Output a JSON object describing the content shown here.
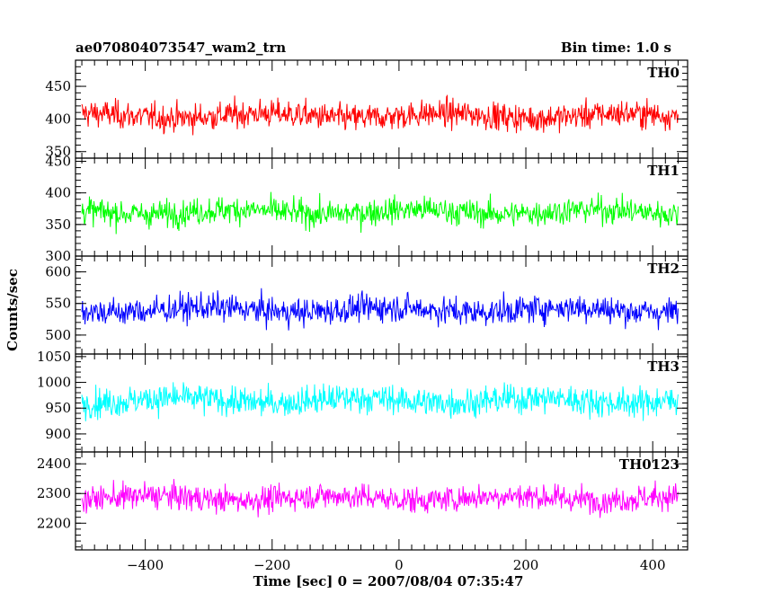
{
  "header": {
    "title": "ae070804073547_wam2_trn",
    "bin_time": "Bin time: 1.0 s"
  },
  "chart_data": {
    "type": "line",
    "xlabel": "Time [sec] 0 = 2007/08/04 07:35:47",
    "ylabel": "Counts/sec",
    "xlim": [
      -510,
      455
    ],
    "x_range": [
      -500,
      440
    ],
    "bin_time": 1.0,
    "xticks": [
      -400,
      -200,
      0,
      200,
      400
    ],
    "panels": [
      {
        "name": "TH0",
        "color": "#ff0000",
        "ylim": [
          340,
          490
        ],
        "yticks": [
          350,
          400,
          450
        ],
        "mean": 405,
        "amplitude": 24
      },
      {
        "name": "TH1",
        "color": "#00ff00",
        "ylim": [
          300,
          455
        ],
        "yticks": [
          300,
          350,
          400,
          450
        ],
        "mean": 370,
        "amplitude": 24
      },
      {
        "name": "TH2",
        "color": "#0000ff",
        "ylim": [
          470,
          625
        ],
        "yticks": [
          500,
          550,
          600
        ],
        "mean": 540,
        "amplitude": 25
      },
      {
        "name": "TH3",
        "color": "#00ffff",
        "ylim": [
          865,
          1055
        ],
        "yticks": [
          900,
          950,
          1000,
          1050
        ],
        "mean": 965,
        "amplitude": 32
      },
      {
        "name": "TH0123",
        "color": "#ff00ff",
        "ylim": [
          2110,
          2440
        ],
        "yticks": [
          2200,
          2300,
          2400
        ],
        "mean": 2285,
        "amplitude": 50
      }
    ]
  }
}
